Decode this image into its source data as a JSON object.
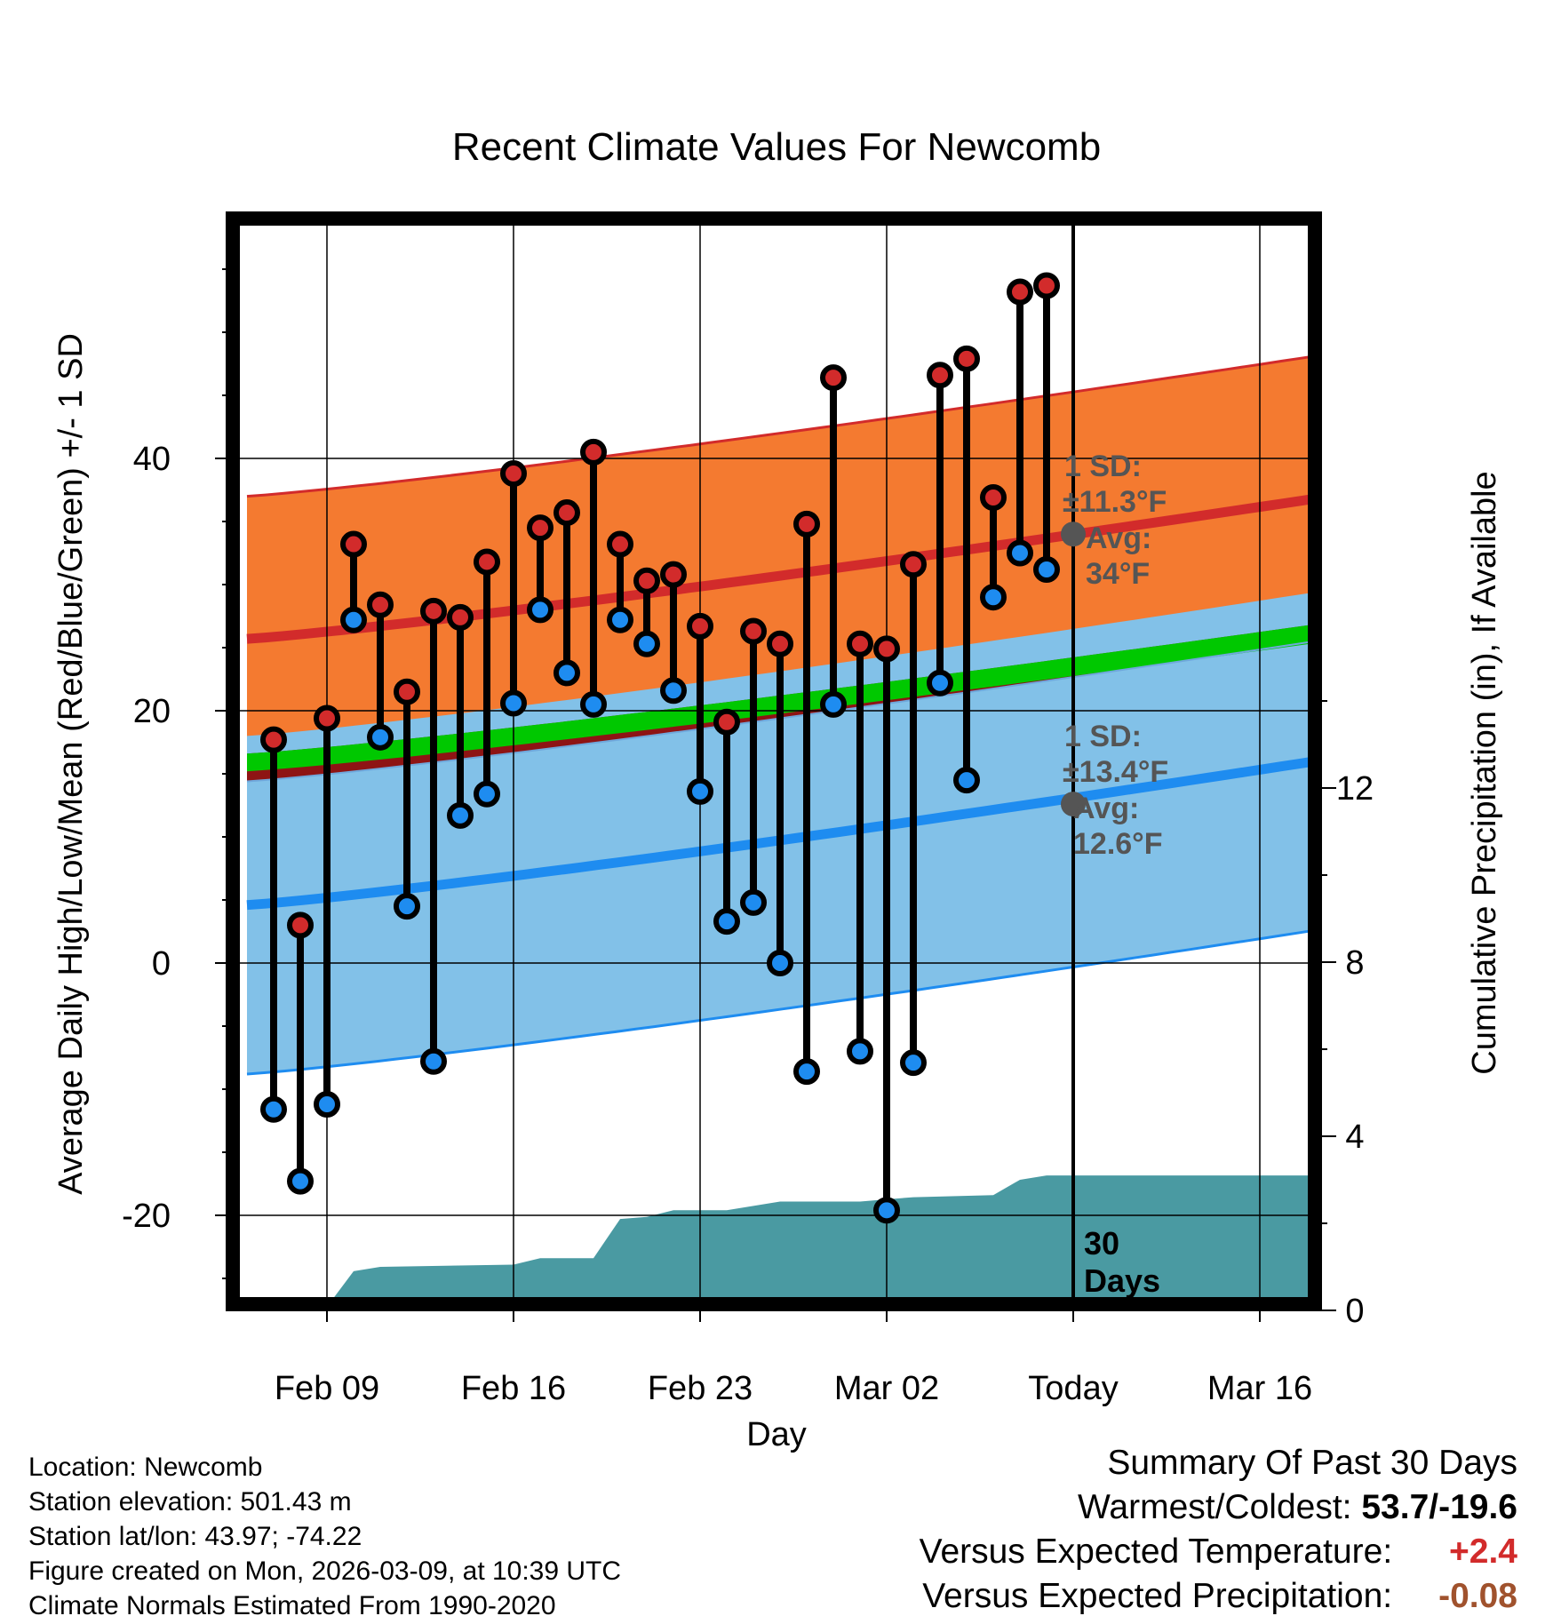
{
  "chart_data": {
    "type": "line",
    "title": "Recent Climate Values For Newcomb",
    "xlabel": "Day",
    "ylabel_left": "Average Daily High/Low/Mean (Red/Blue/Green) +/- 1 SD",
    "ylabel_right": "Cumulative Precipitation (in), If Available",
    "x_ticks": [
      {
        "day": 3,
        "label": "Feb 09"
      },
      {
        "day": 10,
        "label": "Feb 16"
      },
      {
        "day": 17,
        "label": "Feb 23"
      },
      {
        "day": 24,
        "label": "Mar 02"
      },
      {
        "day": 31,
        "label": "Today"
      },
      {
        "day": 38,
        "label": "Mar 16"
      }
    ],
    "xlim": [
      0,
      41.6
    ],
    "ylim_left": [
      -27.5,
      58
    ],
    "y_ticks_left": [
      -20,
      0,
      20,
      40
    ],
    "ylim_right": [
      0,
      24.5
    ],
    "y_ticks_right": [
      0,
      4,
      8,
      12
    ],
    "normal_high_avg": {
      "start": 25.7,
      "end": 37.3
    },
    "normal_high_sd": 11.3,
    "normal_low_avg": {
      "start": 4.6,
      "end": 16.5
    },
    "normal_low_sd": 13.4,
    "normal_mean_band": {
      "start_low": 15.2,
      "start_high": 16.6,
      "end_low": 25.8,
      "end_high": 27.3
    },
    "observed_highs": [
      17.7,
      3.0,
      19.4,
      33.2,
      28.4,
      21.5,
      27.9,
      27.4,
      31.8,
      38.8,
      34.5,
      35.7,
      40.5,
      33.2,
      30.3,
      30.8,
      26.7,
      19.1,
      26.3,
      25.3,
      34.8,
      46.4,
      25.3,
      24.9,
      31.6,
      46.6,
      47.9,
      36.9,
      53.2,
      53.7
    ],
    "observed_lows": [
      -11.6,
      -17.3,
      -11.2,
      27.2,
      17.9,
      4.5,
      -7.8,
      11.7,
      13.4,
      20.6,
      28.0,
      23.0,
      20.5,
      27.2,
      25.3,
      21.6,
      13.6,
      3.3,
      4.8,
      0.0,
      -8.6,
      20.5,
      -7.0,
      -19.6,
      -7.9,
      22.2,
      14.5,
      29.0,
      32.5,
      31.2
    ],
    "cumulative_precip": [
      [
        2.9,
        0.0
      ],
      [
        4.0,
        0.9
      ],
      [
        5.0,
        1.0
      ],
      [
        10.0,
        1.05
      ],
      [
        11.0,
        1.2
      ],
      [
        13.0,
        1.2
      ],
      [
        14.0,
        2.1
      ],
      [
        15.0,
        2.15
      ],
      [
        16.0,
        2.3
      ],
      [
        18.0,
        2.3
      ],
      [
        20.0,
        2.5
      ],
      [
        23.0,
        2.5
      ],
      [
        24.0,
        2.55
      ],
      [
        25.0,
        2.6
      ],
      [
        28.0,
        2.65
      ],
      [
        29.0,
        3.0
      ],
      [
        30.0,
        3.1
      ],
      [
        41.0,
        3.1
      ]
    ],
    "today_marker": {
      "day": 31,
      "label": "30\nDays"
    },
    "annotations": [
      {
        "line1": "1 SD:",
        "line2": "±11.3°F",
        "line3": "Avg:",
        "line4": "34°F"
      },
      {
        "line1": "1 SD:",
        "line2": "±13.4°F",
        "line3": "Avg:",
        "line4": "12.6°F"
      }
    ],
    "colors": {
      "high_band": "#F47A30",
      "high_line": "#D22B2B",
      "low_band": "#82C1E8",
      "low_line": "#1E8CF0",
      "mean_dark": "#8E1414",
      "mean_band": "#00C800",
      "precip": "#4A9AA2",
      "high_dot": "#D22B2B",
      "low_dot": "#1E8CF0"
    }
  },
  "info": {
    "location": "Location: Newcomb",
    "elevation": "Station elevation: 501.43 m",
    "latlon": "Station lat/lon: 43.97; -74.22",
    "created": "Figure created on Mon, 2026-03-09, at 10:39 UTC",
    "normals": "Climate Normals Estimated From 1990-2020"
  },
  "summary": {
    "heading": "Summary Of Past 30 Days",
    "warm_cold_label": "Warmest/Coldest:",
    "warm_cold_value": "53.7/-19.6",
    "temp_label": "Versus Expected Temperature:",
    "temp_value": "+2.4",
    "temp_color": "#D22B2B",
    "precip_label": "Versus Expected Precipitation:",
    "precip_value": "-0.08",
    "precip_color": "#A0522D"
  }
}
